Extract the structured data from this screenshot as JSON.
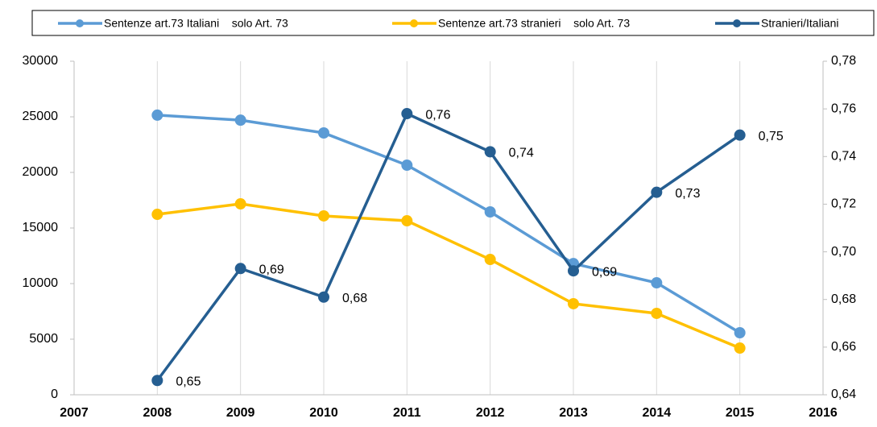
{
  "chart_data": {
    "type": "line",
    "x": [
      2008,
      2009,
      2010,
      2011,
      2012,
      2013,
      2014,
      2015
    ],
    "xlim": [
      2007,
      2016
    ],
    "xticks": [
      2007,
      2008,
      2009,
      2010,
      2011,
      2012,
      2013,
      2014,
      2015,
      2016
    ],
    "ylim": [
      0,
      30000
    ],
    "yticks": [
      0,
      5000,
      10000,
      15000,
      20000,
      25000,
      30000
    ],
    "y2lim": [
      0.64,
      0.78
    ],
    "y2ticks": [
      {
        "value": 0.64,
        "label": "0,64"
      },
      {
        "value": 0.66,
        "label": "0,66"
      },
      {
        "value": 0.68,
        "label": "0,68"
      },
      {
        "value": 0.7,
        "label": "0,70"
      },
      {
        "value": 0.72,
        "label": "0,72"
      },
      {
        "value": 0.74,
        "label": "0,74"
      },
      {
        "value": 0.76,
        "label": "0,76"
      },
      {
        "value": 0.78,
        "label": "0,78"
      }
    ],
    "grid": true,
    "legend": "top",
    "series": [
      {
        "name": "Sentenze art.73 Italiani    solo Art. 73",
        "color": "#5b9bd5",
        "values": [
          25150,
          24700,
          23550,
          20650,
          16450,
          11800,
          10070,
          5580
        ]
      },
      {
        "name": "Sentenze art.73 stranieri    solo Art. 73",
        "color": "#ffc000",
        "values": [
          16230,
          17170,
          16090,
          15650,
          12170,
          8190,
          7320,
          4200
        ]
      },
      {
        "name": "Stranieri/Italiani",
        "color": "#255e91",
        "axis": "y2",
        "values": [
          0.646,
          0.693,
          0.681,
          0.758,
          0.742,
          0.692,
          0.725,
          0.749
        ],
        "value_labels": [
          "0,65",
          "0,69",
          "0,68",
          "0,76",
          "0,74",
          "0,69",
          "0,73",
          "0,75"
        ]
      }
    ]
  }
}
